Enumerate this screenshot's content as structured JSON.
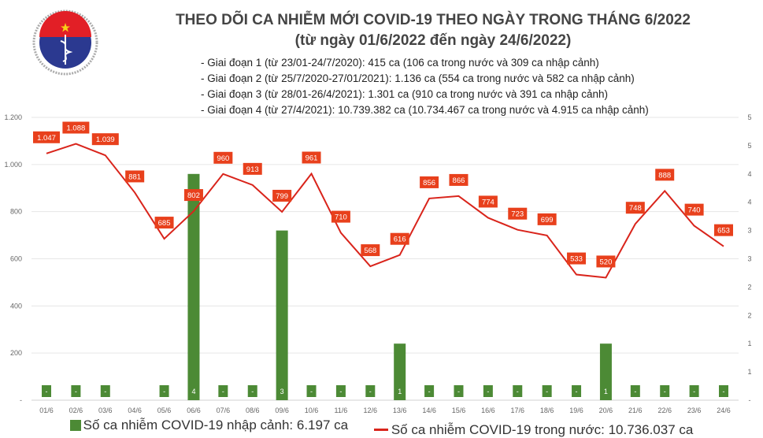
{
  "header": {
    "title": "THEO DÕI CA NHIỄM MỚI COVID-19 THEO NGÀY TRONG THÁNG 6/2022",
    "subtitle": "(từ ngày 01/6/2022 đến ngày 24/6/2022)",
    "notes": [
      "- Giai đoạn 1 (từ 23/01-24/7/2020): 415 ca (106 ca trong nước và 309 ca nhập cảnh)",
      "- Giai đoạn 2 (từ 25/7/2020-27/01/2021): 1.136 ca (554 ca trong nước và 582 ca nhập cảnh)",
      "- Giai đoạn 3 (từ 28/01-26/4/2021): 1.301 ca (910 ca trong nước và 391 ca nhập cảnh)",
      "- Giai đoạn 4 (từ 27/4/2021): 10.739.382 ca (10.734.467 ca trong nước và 4.915 ca nhập cảnh)"
    ]
  },
  "logo": {
    "text_top": "BỘ Y TẾ",
    "text_bottom": "MINISTRY OF HEALTH"
  },
  "chart_data": {
    "type": "bar+line",
    "categories": [
      "01/6",
      "02/6",
      "03/6",
      "04/6",
      "05/6",
      "06/6",
      "07/6",
      "08/6",
      "09/6",
      "10/6",
      "11/6",
      "12/6",
      "13/6",
      "14/6",
      "15/6",
      "16/6",
      "17/6",
      "18/6",
      "19/6",
      "20/6",
      "21/6",
      "22/6",
      "23/6",
      "24/6"
    ],
    "series": [
      {
        "name": "Số ca nhiễm COVID-19 nhập cảnh: 6.197 ca",
        "type": "bar",
        "axis": "right",
        "values": [
          0,
          0,
          0,
          null,
          0,
          4,
          0,
          0,
          3,
          0,
          0,
          0,
          1,
          0,
          0,
          0,
          0,
          0,
          0,
          1,
          0,
          0,
          0,
          0
        ],
        "color": "#4c8a35"
      },
      {
        "name": "Số ca nhiễm COVID-19 trong nước: 10.736.037 ca",
        "type": "line",
        "axis": "left",
        "values": [
          1047,
          1088,
          1039,
          881,
          685,
          802,
          960,
          913,
          799,
          961,
          710,
          568,
          616,
          856,
          866,
          774,
          723,
          699,
          533,
          520,
          748,
          888,
          740,
          653
        ],
        "color": "#d9241b",
        "label_color": "#e8401c"
      }
    ],
    "y_left": {
      "range": [
        0,
        1200
      ],
      "ticks": [
        "-",
        "200",
        "400",
        "600",
        "800",
        "1.000",
        "1.200"
      ]
    },
    "y_right": {
      "range": [
        0,
        5
      ],
      "ticks": [
        "-",
        "1",
        "1",
        "2",
        "2",
        "3",
        "3",
        "4",
        "4",
        "5",
        "5"
      ]
    },
    "zero_label": "-",
    "grid": true,
    "legend_position": "bottom"
  }
}
